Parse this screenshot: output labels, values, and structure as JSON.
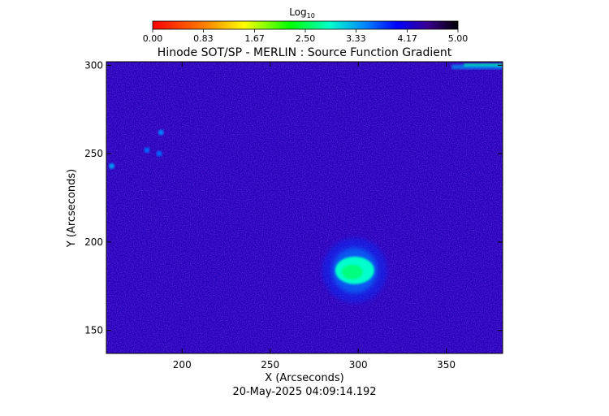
{
  "chart_data": {
    "type": "heatmap",
    "title": "Hinode SOT/SP - MERLIN : Source Function Gradient",
    "xlabel": "X (Arcseconds)",
    "ylabel": "Y (Arcseconds)",
    "timestamp": "20-May-2025 04:09:14.192",
    "xlim": [
      157,
      382
    ],
    "ylim": [
      137,
      302
    ],
    "xticks": [
      "200",
      "250",
      "300",
      "350"
    ],
    "yticks": [
      "150",
      "200",
      "250",
      "300"
    ],
    "xtick_values": [
      200,
      250,
      300,
      350
    ],
    "ytick_values": [
      150,
      200,
      250,
      300
    ],
    "background_level": 4.3,
    "features": [
      {
        "x": 298,
        "y": 184,
        "level": 2.9
      },
      {
        "x": 160,
        "y": 243,
        "level": 3.4
      },
      {
        "x": 188,
        "y": 262,
        "level": 3.5
      },
      {
        "x": 180,
        "y": 252,
        "level": 3.6
      },
      {
        "x": 187,
        "y": 250,
        "level": 3.6
      }
    ],
    "edge_feature": {
      "x_range": [
        360,
        382
      ],
      "y": 300,
      "level": 2.7
    },
    "colorbar": {
      "title_base": "Log",
      "title_sub": "10",
      "min": 0,
      "max": 5,
      "tick_labels": [
        "0.00",
        "0.83",
        "1.67",
        "2.50",
        "3.33",
        "4.17",
        "5.00"
      ],
      "tick_values": [
        0,
        0.83,
        1.67,
        2.5,
        3.33,
        4.17,
        5
      ]
    }
  }
}
